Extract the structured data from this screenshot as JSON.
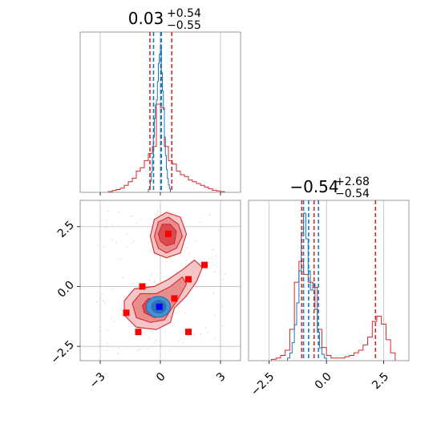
{
  "colors": {
    "red": "#d62728",
    "blue": "#1f77b4",
    "red_fill_1": "#f4c6c7",
    "red_fill_2": "#ea8d8f",
    "red_fill_3": "#d94b4f",
    "blue_fill": "#4a8fd1",
    "grid": "#b0b0b0",
    "spine": "#808080",
    "marker": "#ff0000",
    "truth": "#0000ff"
  },
  "chart_data": [
    {
      "type": "histogram",
      "panel": "top-left",
      "title": {
        "value": "0.03",
        "sup": "+0.54",
        "sub": "−0.55"
      },
      "xlim": [
        -4,
        4
      ],
      "grid": true,
      "series": [
        {
          "name": "",
          "color": "#d62728",
          "bins": [
            -2.6,
            -2.4,
            -2.2,
            -2.0,
            -1.8,
            -1.6,
            -1.4,
            -1.2,
            -1.0,
            -0.8,
            -0.6,
            -0.4,
            -0.2,
            0.0,
            0.2,
            0.4,
            0.6,
            0.8,
            1.0,
            1.2,
            1.4,
            1.6,
            1.8,
            2.0,
            2.2,
            2.4,
            2.6,
            2.8,
            3.0,
            3.2
          ],
          "counts": [
            0.2,
            0.5,
            0.8,
            1.2,
            2.0,
            3.0,
            4.0,
            6.0,
            7.0,
            9.0,
            11.0,
            13.0,
            25.0,
            24.0,
            13.0,
            9.0,
            8.0,
            6.0,
            5.0,
            4.5,
            3.5,
            3.0,
            2.5,
            2.0,
            1.5,
            1.0,
            0.6,
            0.4,
            0.2
          ]
        },
        {
          "name": "",
          "color": "#1f77b4",
          "bins": [
            -0.6,
            -0.55,
            -0.5,
            -0.45,
            -0.4,
            -0.35,
            -0.3,
            -0.25,
            -0.2,
            -0.15,
            -0.1,
            -0.05,
            0.0,
            0.05,
            0.1,
            0.15,
            0.2,
            0.25,
            0.3,
            0.35,
            0.4,
            0.45,
            0.5
          ],
          "counts": [
            3,
            6,
            12,
            22,
            38,
            60,
            80,
            95,
            100,
            120,
            140,
            150,
            160,
            130,
            110,
            90,
            60,
            40,
            25,
            15,
            8,
            4
          ]
        }
      ],
      "quantile_lines": [
        {
          "color": "#d62728",
          "x": [
            -0.52,
            0.03,
            0.57
          ]
        },
        {
          "color": "#1f77b4",
          "x": [
            -0.34,
            0.05,
            0.02
          ]
        }
      ]
    },
    {
      "type": "histogram",
      "panel": "bottom-right",
      "title": {
        "value": "−0.54",
        "sup": "+2.68",
        "sub": "−0.54"
      },
      "xlim": [
        -3.4,
        3.6
      ],
      "xticks": [
        -2.5,
        0.0,
        2.5
      ],
      "xticklabels": [
        "−2.5",
        "0.0",
        "2.5"
      ],
      "grid": true,
      "series": [
        {
          "name": "",
          "color": "#d62728",
          "bins": [
            -2.4,
            -2.2,
            -2.0,
            -1.8,
            -1.6,
            -1.4,
            -1.2,
            -1.0,
            -0.8,
            -0.6,
            -0.4,
            -0.2,
            0.0,
            0.2,
            0.4,
            0.6,
            0.8,
            1.0,
            1.2,
            1.4,
            1.6,
            1.8,
            2.0,
            2.2,
            2.4,
            2.6,
            2.8,
            3.0
          ],
          "counts": [
            0.5,
            1,
            2,
            4,
            12,
            30,
            38,
            33,
            30,
            28,
            12,
            5,
            2,
            1,
            1,
            1,
            1.5,
            2,
            3,
            4,
            6,
            9,
            15,
            17,
            14,
            8,
            3
          ]
        },
        {
          "name": "",
          "color": "#1f77b4",
          "bins": [
            -1.7,
            -1.6,
            -1.5,
            -1.4,
            -1.3,
            -1.2,
            -1.1,
            -1.0,
            -0.9,
            -0.8,
            -0.7,
            -0.6,
            -0.5,
            -0.4,
            -0.3,
            -0.2,
            -0.1,
            0.0
          ],
          "counts": [
            2,
            6,
            14,
            28,
            45,
            70,
            100,
            115,
            95,
            70,
            55,
            60,
            40,
            22,
            10,
            5,
            2
          ]
        }
      ],
      "quantile_lines": [
        {
          "color": "#d62728",
          "x": [
            -1.08,
            -0.54,
            2.14
          ]
        },
        {
          "color": "#1f77b4",
          "x": [
            -1.0,
            -0.78,
            -0.35
          ]
        }
      ]
    },
    {
      "type": "contour",
      "panel": "bottom-left",
      "xlim": [
        -4,
        4
      ],
      "ylim": [
        -3.1,
        3.6
      ],
      "xticks": [
        -3,
        0,
        3
      ],
      "xticklabels": [
        "−3",
        "0",
        "3"
      ],
      "yticks": [
        -2.5,
        0.0,
        2.5
      ],
      "yticklabels": [
        "−2.5",
        "0.0",
        "2.5"
      ],
      "grid": true,
      "markers": [
        [
          0.4,
          2.2
        ],
        [
          2.2,
          0.9
        ],
        [
          1.4,
          0.3
        ],
        [
          -0.9,
          0.0
        ],
        [
          0.7,
          -0.5
        ],
        [
          -1.7,
          -1.1
        ],
        [
          -1.1,
          -1.9
        ],
        [
          1.4,
          -1.9
        ]
      ],
      "truth": [
        -0.05,
        -0.85
      ]
    }
  ]
}
